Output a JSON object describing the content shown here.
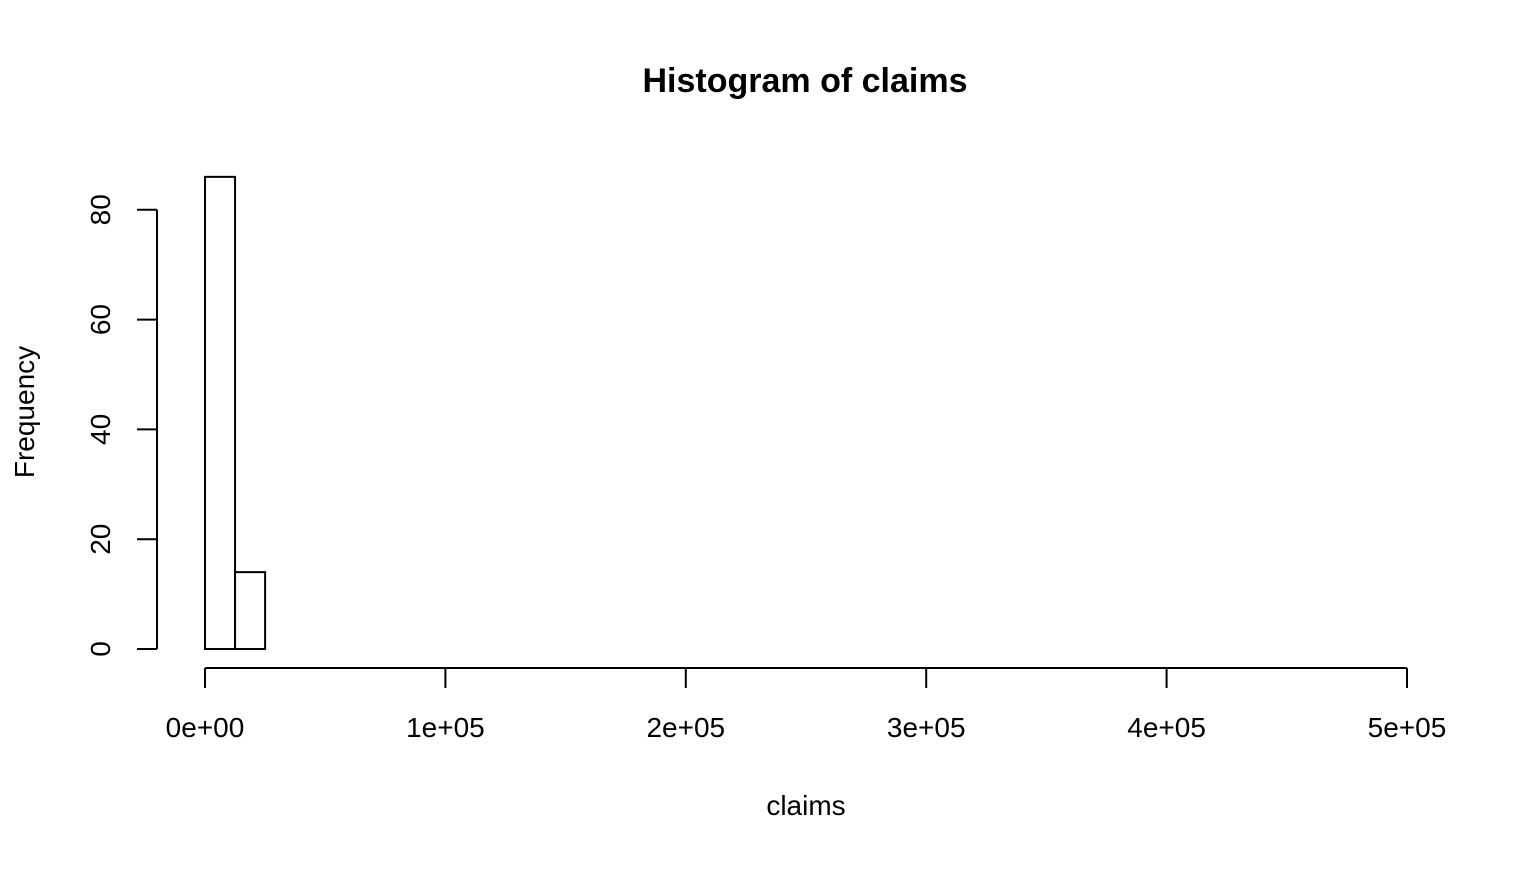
{
  "chart_data": {
    "type": "bar",
    "title": "Histogram of claims",
    "xlabel": "claims",
    "ylabel": "Frequency",
    "xlim": [
      0,
      500000
    ],
    "ylim": [
      0,
      86
    ],
    "bin_width": 12500,
    "bins": [
      {
        "start": 0,
        "end": 12500,
        "count": 86
      },
      {
        "start": 12500,
        "end": 25000,
        "count": 14
      },
      {
        "start": 25000,
        "end": 500000,
        "count": 0
      }
    ],
    "x_ticks": [
      {
        "value": 0,
        "label": "0e+00"
      },
      {
        "value": 100000,
        "label": "1e+05"
      },
      {
        "value": 200000,
        "label": "2e+05"
      },
      {
        "value": 300000,
        "label": "3e+05"
      },
      {
        "value": 400000,
        "label": "4e+05"
      },
      {
        "value": 500000,
        "label": "5e+05"
      }
    ],
    "y_ticks": [
      {
        "value": 0,
        "label": "0"
      },
      {
        "value": 20,
        "label": "20"
      },
      {
        "value": 40,
        "label": "40"
      },
      {
        "value": 60,
        "label": "60"
      },
      {
        "value": 80,
        "label": "80"
      }
    ],
    "grid": false,
    "colors": {
      "bar_fill": "#ffffff",
      "bar_stroke": "#000000"
    }
  }
}
